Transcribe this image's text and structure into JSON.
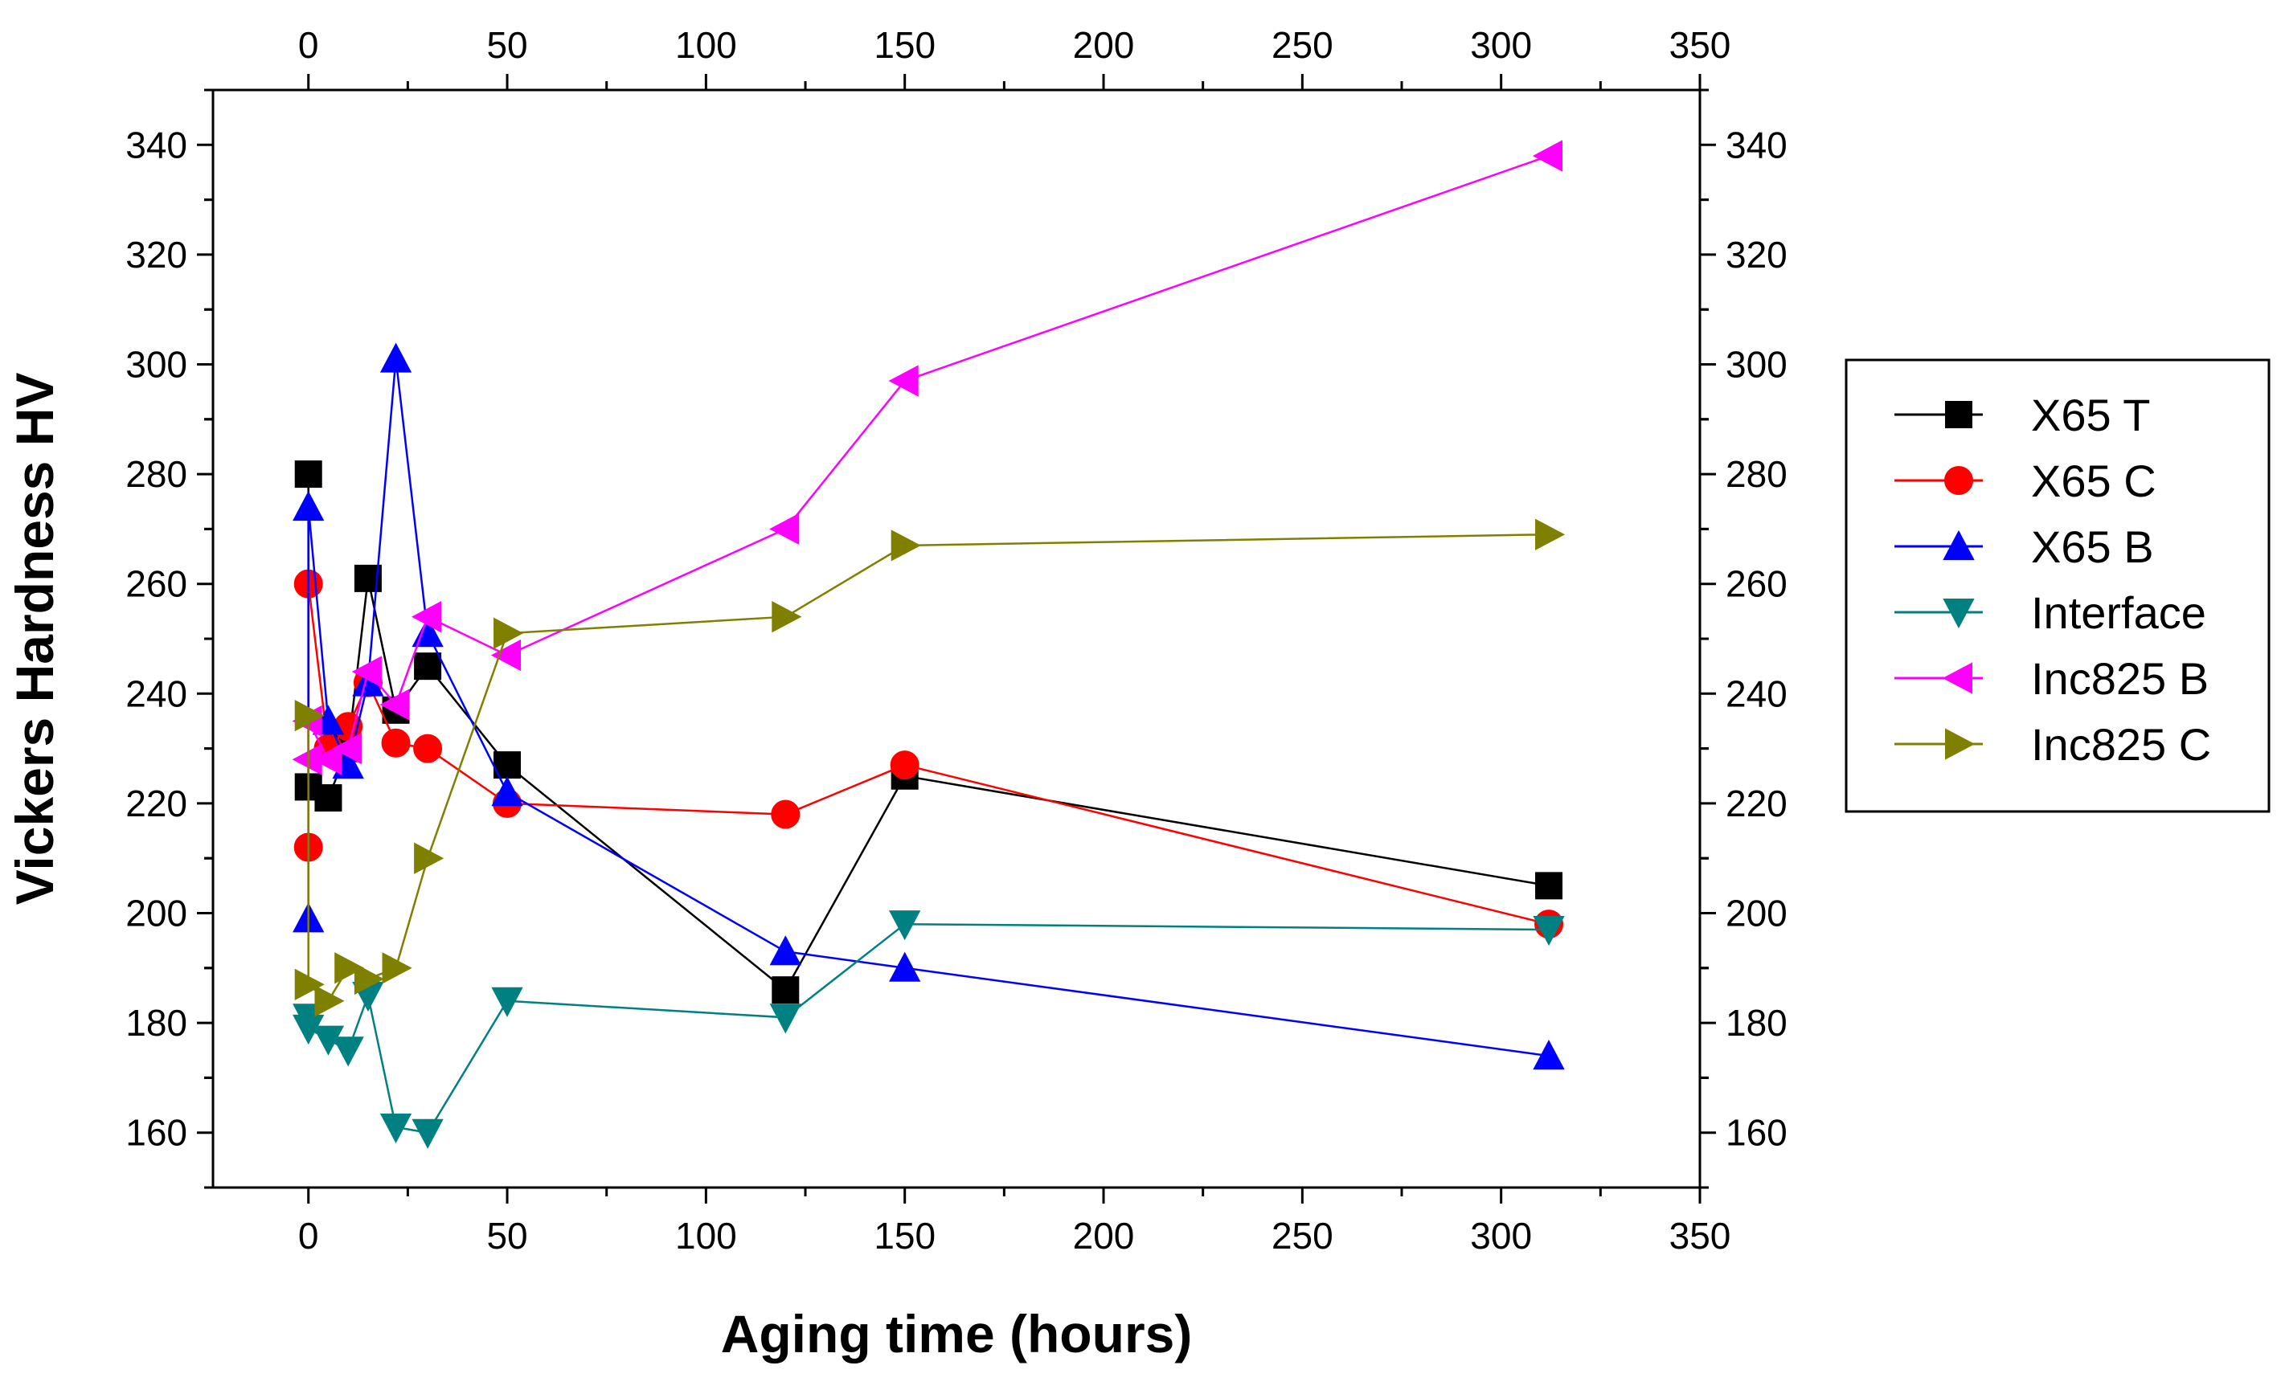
{
  "chart_data": {
    "type": "line",
    "title": "",
    "xlabel": "Aging time (hours)",
    "ylabel": "Vickers Hardness HV",
    "xlim": [
      -24,
      350
    ],
    "ylim": [
      150,
      350
    ],
    "x_ticks": [
      0,
      50,
      100,
      150,
      200,
      250,
      300,
      350
    ],
    "y_ticks": [
      160,
      180,
      200,
      220,
      240,
      260,
      280,
      300,
      320,
      340
    ],
    "legend_position": "right",
    "series": [
      {
        "name": "X65 T",
        "color": "#000000",
        "marker": "square",
        "x": [
          0,
          0,
          5,
          10,
          15,
          22,
          30,
          50,
          120,
          150,
          312
        ],
        "y": [
          280,
          223,
          221,
          230,
          261,
          237,
          245,
          227,
          186,
          225,
          205
        ]
      },
      {
        "name": "X65 C",
        "color": "#ff0000",
        "marker": "circle",
        "x": [
          0,
          0,
          5,
          10,
          15,
          22,
          30,
          50,
          120,
          150,
          312
        ],
        "y": [
          212,
          260,
          230,
          234,
          242,
          231,
          230,
          220,
          218,
          227,
          198
        ]
      },
      {
        "name": "X65 B",
        "color": "#0000ff",
        "marker": "triangle-up",
        "x": [
          0,
          0,
          5,
          10,
          15,
          22,
          30,
          50,
          120,
          150,
          312
        ],
        "y": [
          199,
          274,
          235,
          227,
          242,
          301,
          251,
          222,
          193,
          190,
          174
        ]
      },
      {
        "name": "Interface",
        "color": "#008080",
        "marker": "triangle-down",
        "x": [
          0,
          0,
          5,
          10,
          15,
          22,
          30,
          50,
          120,
          150,
          312
        ],
        "y": [
          181,
          179,
          177,
          175,
          185,
          161,
          160,
          184,
          181,
          198,
          197
        ]
      },
      {
        "name": "Inc825 B",
        "color": "#ff00ff",
        "marker": "triangle-left",
        "x": [
          0,
          0,
          5,
          10,
          15,
          22,
          30,
          50,
          120,
          150,
          312
        ],
        "y": [
          228,
          235,
          228,
          230,
          244,
          238,
          254,
          247,
          270,
          297,
          338
        ]
      },
      {
        "name": "Inc825 C",
        "color": "#808000",
        "marker": "triangle-right",
        "x": [
          0,
          0,
          5,
          10,
          15,
          22,
          30,
          50,
          120,
          150,
          312
        ],
        "y": [
          236,
          187,
          184,
          190,
          188,
          190,
          210,
          251,
          254,
          267,
          269
        ]
      }
    ]
  }
}
